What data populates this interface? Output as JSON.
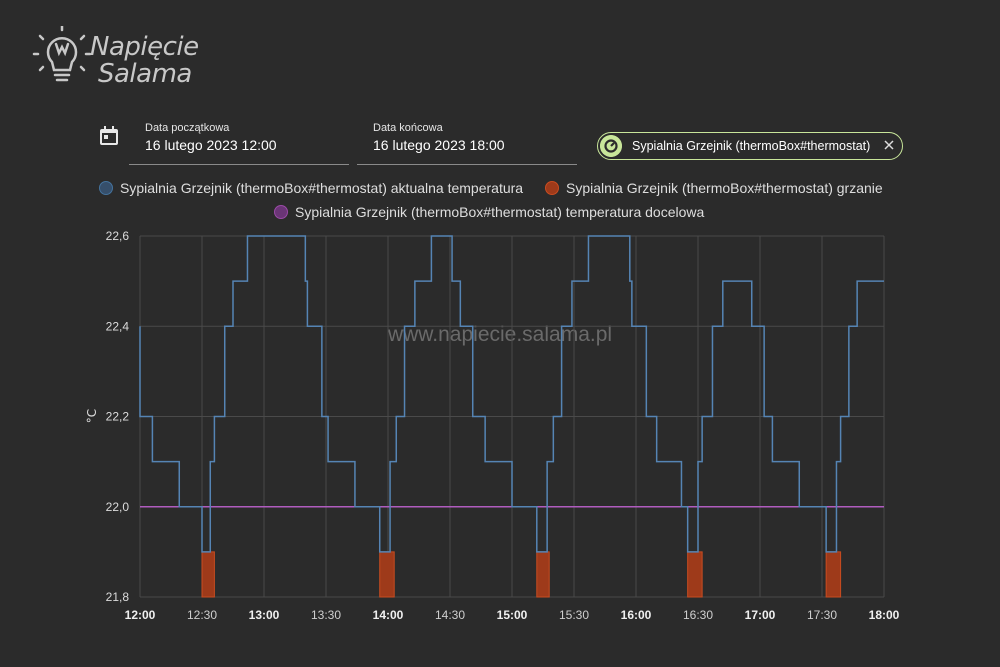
{
  "logo": {
    "line1": "Napięcie",
    "line2": "Salama"
  },
  "date_range": {
    "start": {
      "label": "Data początkowa",
      "value": "16 lutego 2023 12:00"
    },
    "end": {
      "label": "Data końcowa",
      "value": "16 lutego 2023 18:00"
    }
  },
  "entity_chip": {
    "label": "Sypialnia Grzejnik (thermoBox#thermostat)"
  },
  "watermark": "www.napiecie.salama.pl",
  "colors": {
    "series_temp": "#44739e",
    "series_heat": "#c94c20",
    "series_target": "#9b4aa8",
    "chip_accent": "#c8e69a"
  },
  "chart_data": {
    "type": "line",
    "ylabel": "°C",
    "ylim": [
      21.8,
      22.6
    ],
    "y_ticks": [
      "22,6",
      "22,4",
      "22,2",
      "22,0",
      "21,8"
    ],
    "x_ticks": [
      {
        "label": "12:00",
        "bold": true
      },
      {
        "label": "12:30",
        "bold": false
      },
      {
        "label": "13:00",
        "bold": true
      },
      {
        "label": "13:30",
        "bold": false
      },
      {
        "label": "14:00",
        "bold": true
      },
      {
        "label": "14:30",
        "bold": false
      },
      {
        "label": "15:00",
        "bold": true
      },
      {
        "label": "15:30",
        "bold": false
      },
      {
        "label": "16:00",
        "bold": true
      },
      {
        "label": "16:30",
        "bold": false
      },
      {
        "label": "17:00",
        "bold": true
      },
      {
        "label": "17:30",
        "bold": false
      },
      {
        "label": "18:00",
        "bold": true
      }
    ],
    "grid": true,
    "series": [
      {
        "name": "Sypialnia Grzejnik (thermoBox#thermostat) aktualna temperatura",
        "type": "step-line",
        "points": [
          [
            "12:00",
            22.4
          ],
          [
            "12:00",
            22.2
          ],
          [
            "12:06",
            22.1
          ],
          [
            "12:19",
            22.0
          ],
          [
            "12:30",
            21.9
          ],
          [
            "12:34",
            22.1
          ],
          [
            "12:36",
            22.2
          ],
          [
            "12:41",
            22.4
          ],
          [
            "12:45",
            22.5
          ],
          [
            "12:52",
            22.6
          ],
          [
            "13:20",
            22.5
          ],
          [
            "13:21",
            22.4
          ],
          [
            "13:28",
            22.2
          ],
          [
            "13:31",
            22.1
          ],
          [
            "13:44",
            22.0
          ],
          [
            "13:56",
            21.9
          ],
          [
            "14:01",
            22.1
          ],
          [
            "14:04",
            22.2
          ],
          [
            "14:08",
            22.4
          ],
          [
            "14:13",
            22.5
          ],
          [
            "14:21",
            22.6
          ],
          [
            "14:31",
            22.5
          ],
          [
            "14:35",
            22.4
          ],
          [
            "14:41",
            22.2
          ],
          [
            "14:47",
            22.1
          ],
          [
            "15:00",
            22.0
          ],
          [
            "15:12",
            21.9
          ],
          [
            "15:17",
            22.1
          ],
          [
            "15:20",
            22.2
          ],
          [
            "15:24",
            22.4
          ],
          [
            "15:29",
            22.5
          ],
          [
            "15:37",
            22.6
          ],
          [
            "15:57",
            22.5
          ],
          [
            "15:58",
            22.4
          ],
          [
            "16:05",
            22.2
          ],
          [
            "16:10",
            22.1
          ],
          [
            "16:22",
            22.0
          ],
          [
            "16:25",
            21.9
          ],
          [
            "16:30",
            22.1
          ],
          [
            "16:32",
            22.2
          ],
          [
            "16:37",
            22.4
          ],
          [
            "16:42",
            22.5
          ],
          [
            "16:56",
            22.4
          ],
          [
            "17:02",
            22.2
          ],
          [
            "17:06",
            22.1
          ],
          [
            "17:19",
            22.0
          ],
          [
            "17:32",
            21.9
          ],
          [
            "17:37",
            22.1
          ],
          [
            "17:39",
            22.2
          ],
          [
            "17:43",
            22.4
          ],
          [
            "17:47",
            22.5
          ],
          [
            "18:00",
            22.5
          ]
        ]
      },
      {
        "name": "Sypialnia Grzejnik (thermoBox#thermostat) grzanie",
        "type": "bands",
        "ranges": [
          [
            "12:30",
            "12:36"
          ],
          [
            "13:56",
            "14:03"
          ],
          [
            "15:12",
            "15:18"
          ],
          [
            "16:25",
            "16:32"
          ],
          [
            "17:32",
            "17:39"
          ]
        ],
        "value": 21.9
      },
      {
        "name": "Sypialnia Grzejnik (thermoBox#thermostat) temperatura docelowa",
        "type": "line",
        "points": [
          [
            "12:00",
            22.0
          ],
          [
            "18:00",
            22.0
          ]
        ]
      }
    ]
  }
}
